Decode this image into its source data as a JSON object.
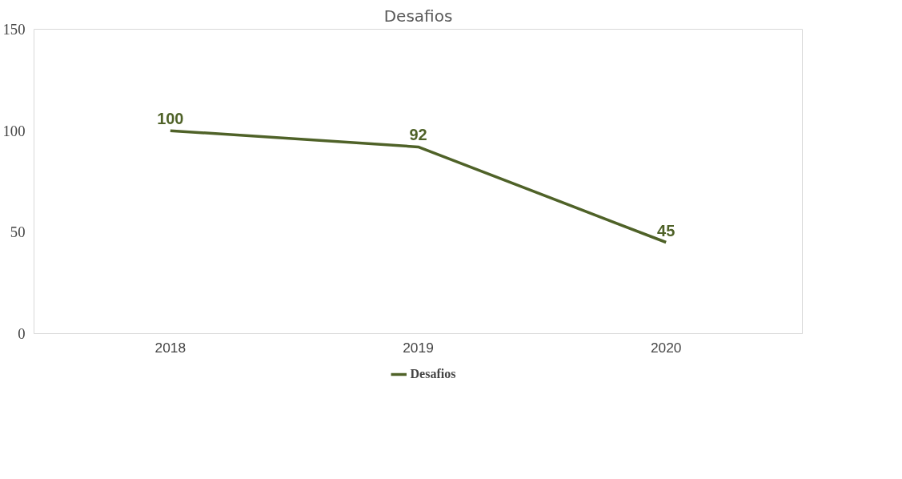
{
  "chart_data": {
    "type": "line",
    "title": "Desafios",
    "categories": [
      "2018",
      "2019",
      "2020"
    ],
    "series": [
      {
        "name": "Desafios",
        "color": "#4f6228",
        "values": [
          100,
          92,
          45
        ]
      }
    ],
    "ylim": [
      0,
      150
    ],
    "yticks": [
      0,
      50,
      100,
      150
    ],
    "grid": false,
    "legend": "bottom",
    "data_labels": true,
    "marker": "none",
    "line_style": "solid"
  }
}
